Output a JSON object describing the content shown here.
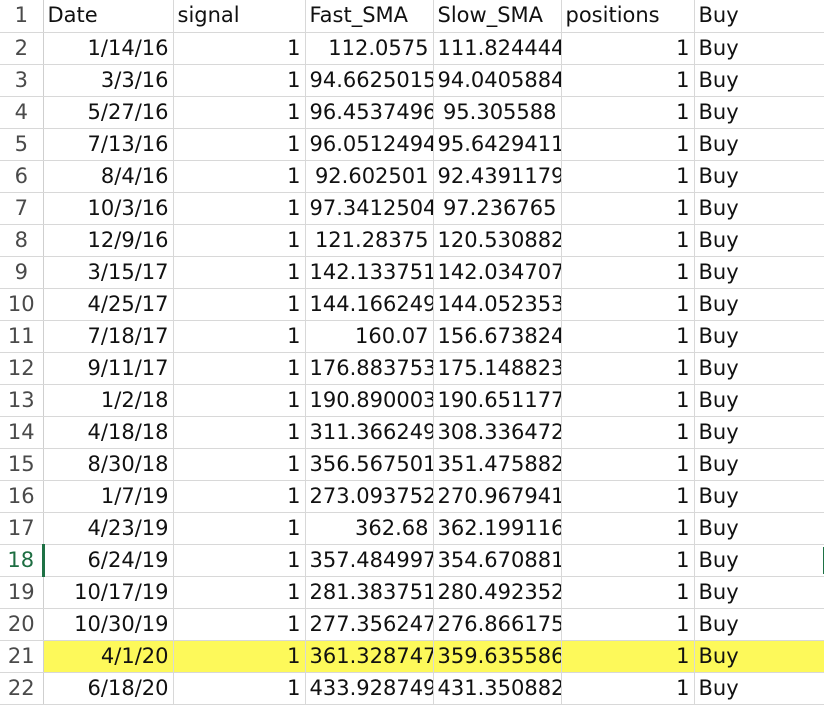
{
  "header": {
    "row_number": "1",
    "columns": [
      "Date",
      "signal",
      "Fast_SMA",
      "Slow_SMA",
      "positions",
      "Buy"
    ]
  },
  "rows": [
    {
      "n": "2",
      "date": "1/14/16",
      "signal": "1",
      "fast": "112.0575",
      "slow": "111.824444",
      "positions": "1",
      "action": "Buy"
    },
    {
      "n": "3",
      "date": "3/3/16",
      "signal": "1",
      "fast": "94.6625015",
      "slow": "94.0405884",
      "positions": "1",
      "action": "Buy"
    },
    {
      "n": "4",
      "date": "5/27/16",
      "signal": "1",
      "fast": "96.4537496",
      "slow": "95.305588",
      "positions": "1",
      "action": "Buy"
    },
    {
      "n": "5",
      "date": "7/13/16",
      "signal": "1",
      "fast": "96.0512494",
      "slow": "95.6429411",
      "positions": "1",
      "action": "Buy"
    },
    {
      "n": "6",
      "date": "8/4/16",
      "signal": "1",
      "fast": "92.602501",
      "slow": "92.4391179",
      "positions": "1",
      "action": "Buy"
    },
    {
      "n": "7",
      "date": "10/3/16",
      "signal": "1",
      "fast": "97.3412504",
      "slow": "97.236765",
      "positions": "1",
      "action": "Buy"
    },
    {
      "n": "8",
      "date": "12/9/16",
      "signal": "1",
      "fast": "121.28375",
      "slow": "120.530882",
      "positions": "1",
      "action": "Buy"
    },
    {
      "n": "9",
      "date": "3/15/17",
      "signal": "1",
      "fast": "142.133751",
      "slow": "142.034707",
      "positions": "1",
      "action": "Buy"
    },
    {
      "n": "10",
      "date": "4/25/17",
      "signal": "1",
      "fast": "144.166249",
      "slow": "144.052353",
      "positions": "1",
      "action": "Buy"
    },
    {
      "n": "11",
      "date": "7/18/17",
      "signal": "1",
      "fast": "160.07",
      "slow": "156.673824",
      "positions": "1",
      "action": "Buy"
    },
    {
      "n": "12",
      "date": "9/11/17",
      "signal": "1",
      "fast": "176.883753",
      "slow": "175.148823",
      "positions": "1",
      "action": "Buy"
    },
    {
      "n": "13",
      "date": "1/2/18",
      "signal": "1",
      "fast": "190.890003",
      "slow": "190.651177",
      "positions": "1",
      "action": "Buy"
    },
    {
      "n": "14",
      "date": "4/18/18",
      "signal": "1",
      "fast": "311.366249",
      "slow": "308.336472",
      "positions": "1",
      "action": "Buy"
    },
    {
      "n": "15",
      "date": "8/30/18",
      "signal": "1",
      "fast": "356.567501",
      "slow": "351.475882",
      "positions": "1",
      "action": "Buy"
    },
    {
      "n": "16",
      "date": "1/7/19",
      "signal": "1",
      "fast": "273.093752",
      "slow": "270.967941",
      "positions": "1",
      "action": "Buy"
    },
    {
      "n": "17",
      "date": "4/23/19",
      "signal": "1",
      "fast": "362.68",
      "slow": "362.199116",
      "positions": "1",
      "action": "Buy"
    },
    {
      "n": "18",
      "date": "6/24/19",
      "signal": "1",
      "fast": "357.484997",
      "slow": "354.670881",
      "positions": "1",
      "action": "Buy",
      "selected": true
    },
    {
      "n": "19",
      "date": "10/17/19",
      "signal": "1",
      "fast": "281.383751",
      "slow": "280.492352",
      "positions": "1",
      "action": "Buy"
    },
    {
      "n": "20",
      "date": "10/30/19",
      "signal": "1",
      "fast": "277.356247",
      "slow": "276.866175",
      "positions": "1",
      "action": "Buy"
    },
    {
      "n": "21",
      "date": "4/1/20",
      "signal": "1",
      "fast": "361.328747",
      "slow": "359.635586",
      "positions": "1",
      "action": "Buy",
      "highlighted": true
    },
    {
      "n": "22",
      "date": "6/18/20",
      "signal": "1",
      "fast": "433.928749",
      "slow": "431.350882",
      "positions": "1",
      "action": "Buy"
    }
  ],
  "colors": {
    "highlight": "#fdf95a",
    "selection": "#1e7145"
  }
}
